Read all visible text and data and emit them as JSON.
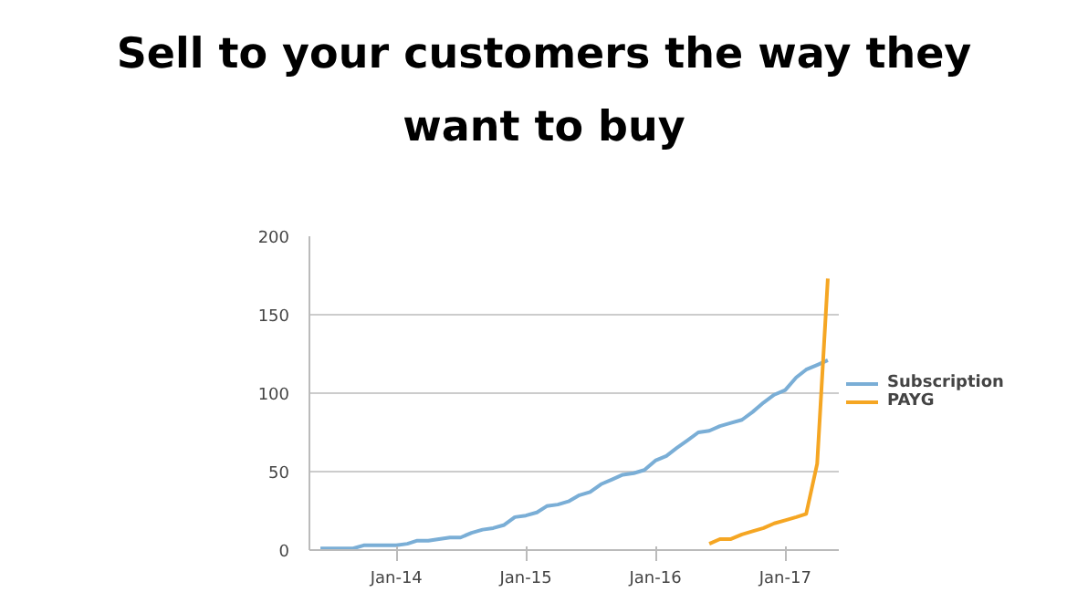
{
  "chart_data": {
    "type": "line",
    "title": "Sell to your customers the way they want to buy",
    "x": [
      "2013-06",
      "2013-07",
      "2013-08",
      "2013-09",
      "2013-10",
      "2013-11",
      "2013-12",
      "2014-01",
      "2014-02",
      "2014-03",
      "2014-04",
      "2014-05",
      "2014-06",
      "2014-07",
      "2014-08",
      "2014-09",
      "2014-10",
      "2014-11",
      "2014-12",
      "2015-01",
      "2015-02",
      "2015-03",
      "2015-04",
      "2015-05",
      "2015-06",
      "2015-07",
      "2015-08",
      "2015-09",
      "2015-10",
      "2015-11",
      "2015-12",
      "2016-01",
      "2016-02",
      "2016-03",
      "2016-04",
      "2016-05",
      "2016-06",
      "2016-07",
      "2016-08",
      "2016-09",
      "2016-10",
      "2016-11",
      "2016-12",
      "2017-01",
      "2017-02",
      "2017-03",
      "2017-04",
      "2017-05"
    ],
    "series": [
      {
        "name": "Subscription",
        "color": "#7aaed6",
        "values": [
          1,
          1,
          1,
          1,
          3,
          3,
          3,
          3,
          4,
          6,
          6,
          7,
          8,
          8,
          11,
          13,
          14,
          16,
          21,
          22,
          24,
          28,
          29,
          31,
          35,
          37,
          42,
          45,
          48,
          49,
          51,
          57,
          60,
          65,
          70,
          75,
          76,
          79,
          81,
          83,
          88,
          94,
          99,
          102,
          110,
          115,
          118,
          121
        ]
      },
      {
        "name": "PAYG",
        "color": "#f5a623",
        "values": [
          null,
          null,
          null,
          null,
          null,
          null,
          null,
          null,
          null,
          null,
          null,
          null,
          null,
          null,
          null,
          null,
          null,
          null,
          null,
          null,
          null,
          null,
          null,
          null,
          null,
          null,
          null,
          null,
          null,
          null,
          null,
          null,
          null,
          null,
          null,
          null,
          4,
          7,
          7,
          10,
          12,
          14,
          17,
          19,
          21,
          23,
          55,
          173
        ]
      }
    ],
    "xlim": [
      "2013-05",
      "2017-06"
    ],
    "xticks": [
      {
        "value": "2014-01",
        "label": "Jan-14"
      },
      {
        "value": "2015-01",
        "label": "Jan-15"
      },
      {
        "value": "2016-01",
        "label": "Jan-16"
      },
      {
        "value": "2017-01",
        "label": "Jan-17"
      }
    ],
    "ylim": [
      0,
      200
    ],
    "yticks": [
      0,
      50,
      100,
      150,
      200
    ],
    "grid": "y",
    "legend": "right",
    "marker": "none",
    "line_style": "solid"
  }
}
